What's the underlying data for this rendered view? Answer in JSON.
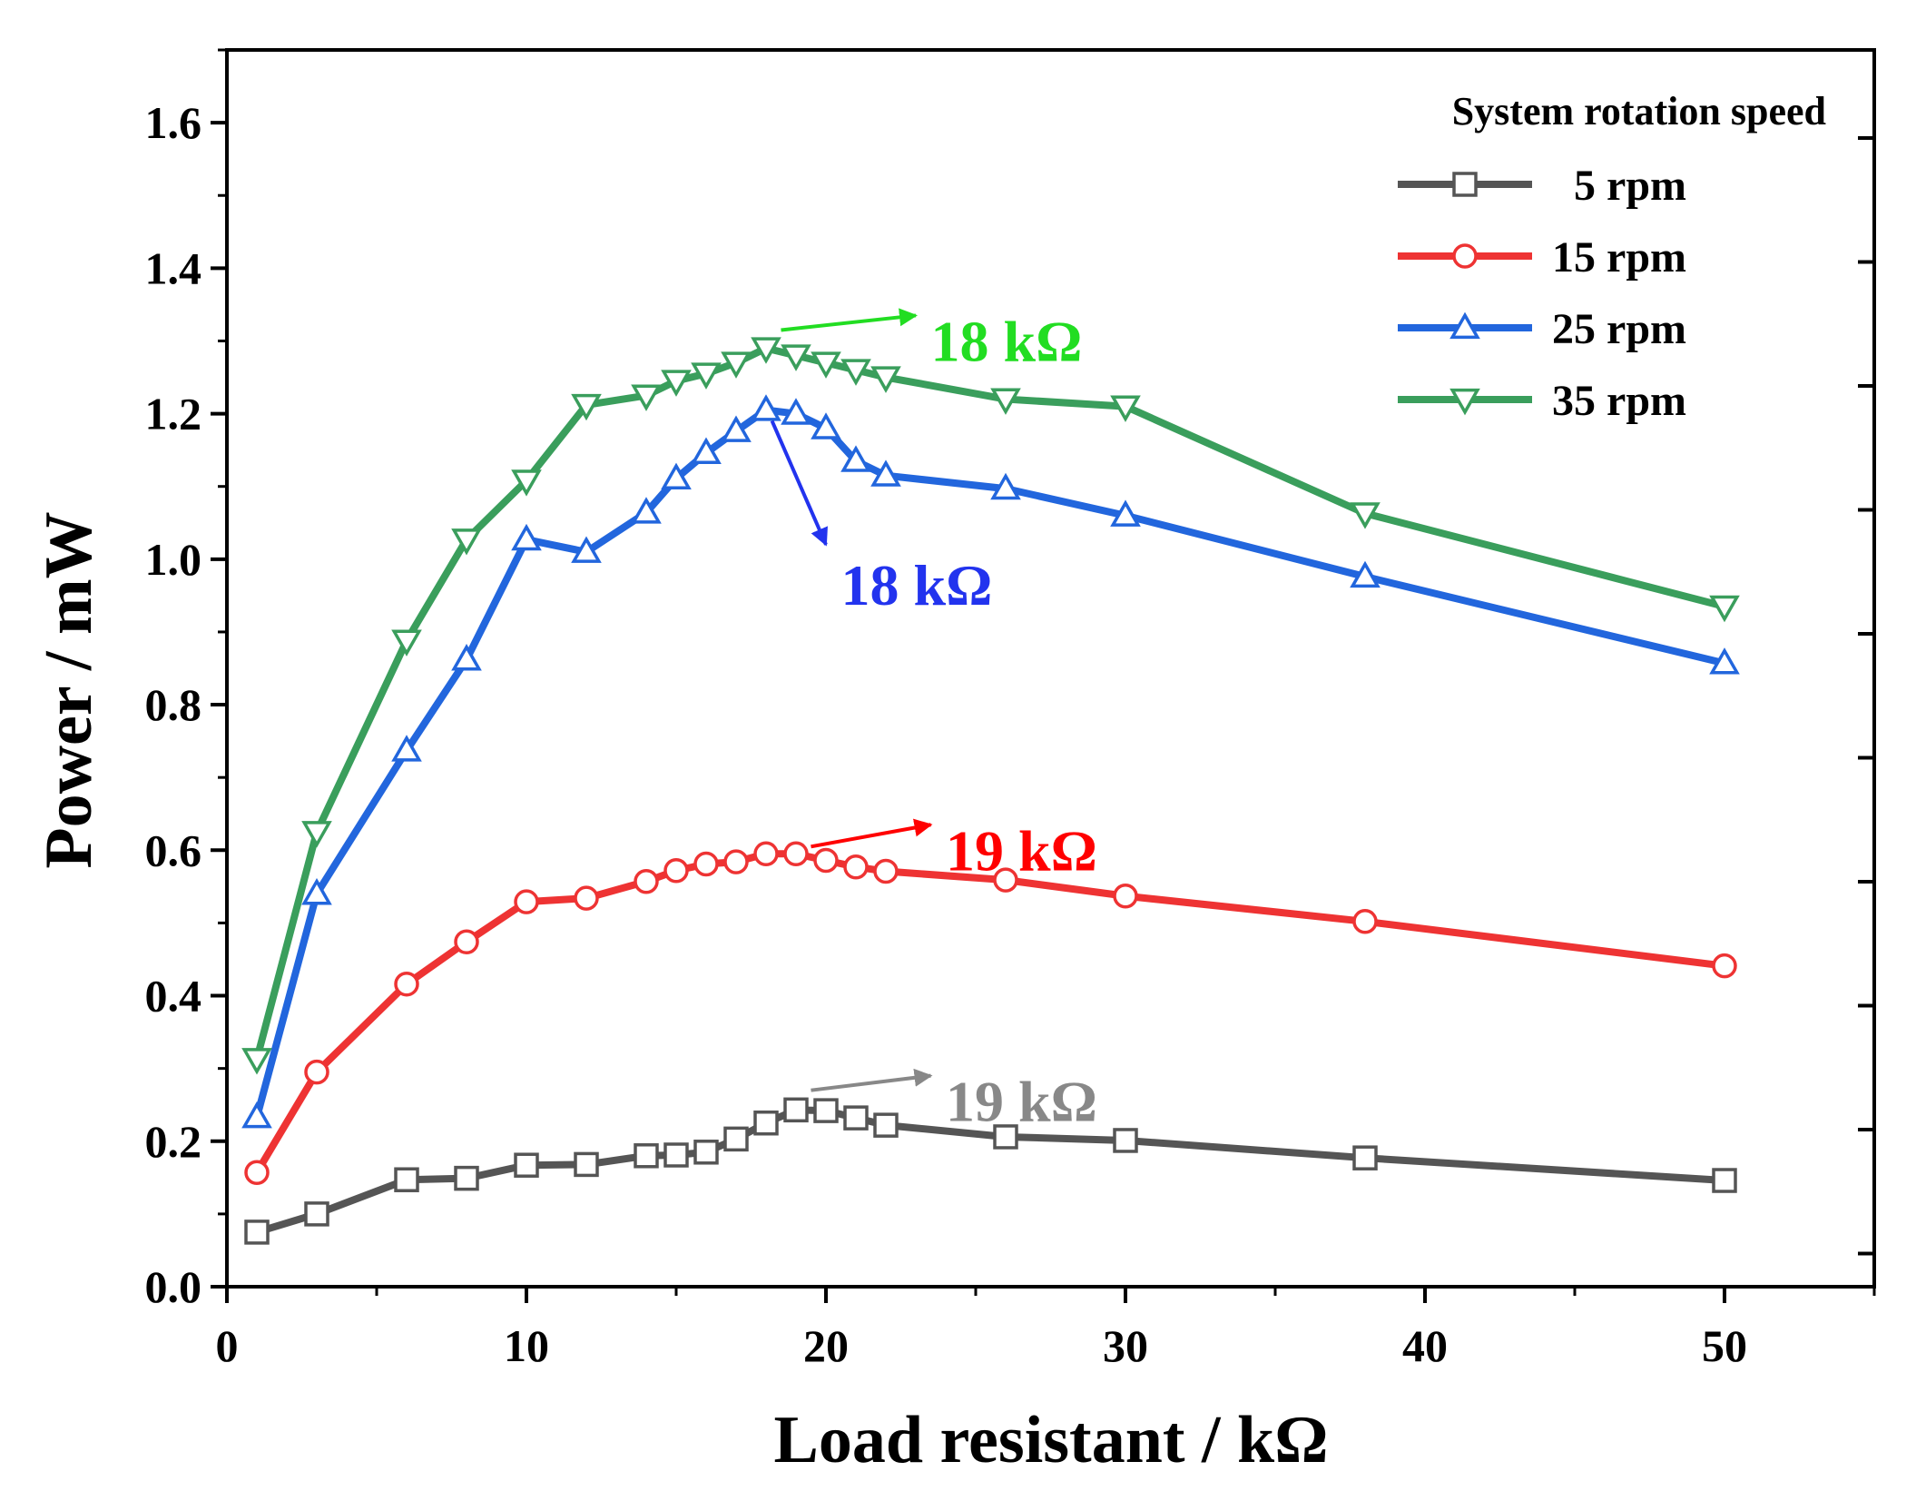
{
  "chart_data": {
    "type": "line",
    "title": "",
    "xlabel": "Load resistant / kΩ",
    "ylabel": "Power / mW",
    "xlim": [
      0,
      55
    ],
    "ylim": [
      0,
      1.7
    ],
    "x_ticks": [
      "0",
      "10",
      "20",
      "30",
      "40",
      "50"
    ],
    "y_ticks": [
      "0.0",
      "0.2",
      "0.4",
      "0.6",
      "0.8",
      "1.0",
      "1.2",
      "1.4",
      "1.6"
    ],
    "x_tick_values": [
      0,
      10,
      20,
      30,
      40,
      50
    ],
    "y_tick_values": [
      0,
      0.2,
      0.4,
      0.6,
      0.8,
      1.0,
      1.2,
      1.4,
      1.6
    ],
    "grid": false,
    "legend": {
      "title": "System rotation speed",
      "placement": "top-right"
    },
    "x": [
      1,
      3,
      6,
      8,
      10,
      12,
      14,
      15,
      16,
      17,
      18,
      19,
      20,
      21,
      22,
      26,
      30,
      38,
      50
    ],
    "series": [
      {
        "name": "5 rpm",
        "color": "#555555",
        "marker": "square",
        "values": [
          0.075,
          0.1,
          0.147,
          0.149,
          0.167,
          0.168,
          0.18,
          0.181,
          0.185,
          0.203,
          0.225,
          0.243,
          0.242,
          0.232,
          0.222,
          0.206,
          0.201,
          0.177,
          0.146
        ]
      },
      {
        "name": "15 rpm",
        "color": "#ee3333",
        "marker": "circle",
        "values": [
          0.157,
          0.295,
          0.416,
          0.474,
          0.529,
          0.534,
          0.557,
          0.572,
          0.581,
          0.584,
          0.595,
          0.595,
          0.586,
          0.577,
          0.571,
          0.559,
          0.537,
          0.502,
          0.441
        ]
      },
      {
        "name": "25 rpm",
        "color": "#2266dd",
        "marker": "triangle-up",
        "values": [
          0.233,
          0.54,
          0.737,
          0.862,
          1.027,
          1.01,
          1.064,
          1.111,
          1.146,
          1.176,
          1.205,
          1.2,
          1.18,
          1.135,
          1.115,
          1.097,
          1.06,
          0.976,
          0.857
        ]
      },
      {
        "name": "35 rpm",
        "color": "#3a9e5c",
        "marker": "triangle-down",
        "values": [
          0.313,
          0.625,
          0.888,
          1.027,
          1.108,
          1.212,
          1.225,
          1.245,
          1.255,
          1.27,
          1.29,
          1.28,
          1.27,
          1.26,
          1.25,
          1.22,
          1.21,
          1.063,
          0.935
        ]
      }
    ],
    "annotations": [
      {
        "text": "18 kΩ",
        "color": "#22dd22",
        "label_x": 23.5,
        "label_y": 1.3,
        "arrow_from": [
          18.5,
          1.315
        ],
        "arrow_to": [
          23,
          1.335
        ]
      },
      {
        "text": "18 kΩ",
        "color": "#2233ee",
        "label_x": 20.5,
        "label_y": 0.965,
        "arrow_from": [
          18.2,
          1.19
        ],
        "arrow_to": [
          20,
          1.02
        ]
      },
      {
        "text": "19 kΩ",
        "color": "#ff0000",
        "label_x": 24,
        "label_y": 0.6,
        "arrow_from": [
          19.5,
          0.605
        ],
        "arrow_to": [
          23.5,
          0.635
        ]
      },
      {
        "text": "19 kΩ",
        "color": "#888888",
        "label_x": 24,
        "label_y": 0.255,
        "arrow_from": [
          19.5,
          0.27
        ],
        "arrow_to": [
          23.5,
          0.29
        ]
      }
    ]
  }
}
